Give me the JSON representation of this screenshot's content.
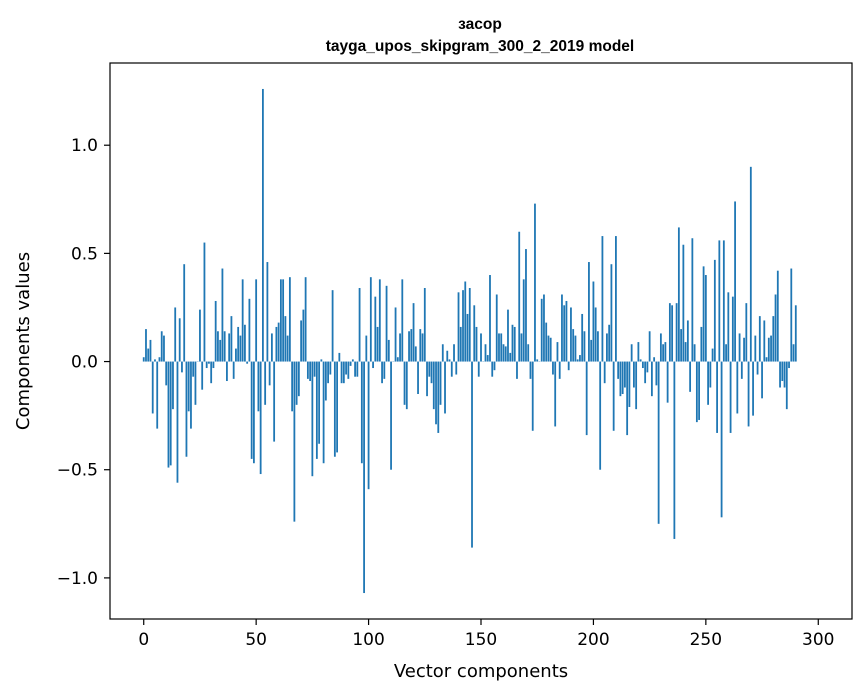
{
  "chart_data": {
    "type": "bar",
    "title": "засор",
    "subtitle": "tayga_upos_skipgram_300_2_2019 model",
    "xlabel": "Vector components",
    "ylabel": "Components values",
    "xlim": [
      -15,
      315
    ],
    "ylim": [
      -1.19,
      1.38
    ],
    "xticks": [
      0,
      50,
      100,
      150,
      200,
      250,
      300
    ],
    "xtick_labels": [
      "0",
      "50",
      "100",
      "150",
      "200",
      "250",
      "300"
    ],
    "yticks": [
      -1.0,
      -0.5,
      0.0,
      0.5,
      1.0
    ],
    "ytick_labels": [
      "−1.0",
      "−0.5",
      "0.0",
      "0.5",
      "1.0"
    ],
    "bar_color": "#1f77b4",
    "values": [
      0.02,
      0.15,
      0.06,
      0.1,
      -0.24,
      0.01,
      -0.31,
      0.02,
      0.14,
      0.12,
      -0.11,
      -0.49,
      -0.48,
      -0.22,
      0.25,
      -0.56,
      0.2,
      -0.05,
      0.45,
      -0.44,
      -0.23,
      -0.31,
      -0.07,
      -0.2,
      0.0,
      0.24,
      -0.13,
      0.55,
      -0.03,
      -0.01,
      -0.1,
      -0.03,
      0.28,
      0.14,
      0.1,
      0.43,
      0.14,
      -0.09,
      0.13,
      0.21,
      -0.08,
      0.06,
      0.16,
      0.12,
      0.38,
      0.17,
      -0.01,
      0.29,
      -0.45,
      -0.47,
      0.38,
      -0.23,
      -0.52,
      1.26,
      -0.2,
      0.46,
      -0.11,
      0.13,
      -0.37,
      0.16,
      0.18,
      0.38,
      0.38,
      0.21,
      0.12,
      0.39,
      -0.23,
      -0.74,
      -0.2,
      -0.16,
      0.19,
      0.24,
      0.39,
      -0.08,
      -0.09,
      -0.53,
      -0.07,
      -0.45,
      -0.38,
      0.01,
      -0.47,
      -0.18,
      -0.1,
      -0.06,
      0.33,
      -0.44,
      -0.42,
      0.04,
      -0.1,
      -0.1,
      -0.06,
      -0.08,
      -0.02,
      0.01,
      -0.07,
      -0.07,
      0.34,
      -0.47,
      -1.07,
      0.12,
      -0.59,
      0.39,
      -0.03,
      0.3,
      0.16,
      0.38,
      -0.1,
      -0.08,
      0.35,
      0.1,
      -0.5,
      0.0,
      0.25,
      0.02,
      0.13,
      0.38,
      -0.2,
      -0.22,
      0.14,
      0.15,
      0.27,
      0.07,
      -0.15,
      0.15,
      0.13,
      0.34,
      -0.16,
      -0.07,
      -0.1,
      -0.22,
      -0.29,
      -0.33,
      -0.2,
      0.08,
      -0.24,
      0.05,
      0.01,
      -0.07,
      0.08,
      -0.06,
      0.32,
      0.16,
      0.33,
      0.37,
      0.22,
      0.34,
      -0.86,
      0.26,
      0.16,
      -0.07,
      0.13,
      0.0,
      0.08,
      0.03,
      0.4,
      -0.07,
      -0.04,
      0.31,
      0.13,
      0.13,
      0.08,
      0.07,
      0.24,
      0.04,
      0.17,
      0.16,
      -0.08,
      0.6,
      0.13,
      0.38,
      0.52,
      0.08,
      -0.08,
      -0.32,
      0.73,
      0.01,
      0.0,
      0.29,
      0.31,
      0.18,
      0.12,
      0.11,
      -0.06,
      -0.3,
      0.09,
      -0.08,
      0.31,
      0.26,
      0.28,
      -0.04,
      0.25,
      0.15,
      0.12,
      0.01,
      0.03,
      0.22,
      0.14,
      -0.34,
      0.46,
      0.1,
      0.37,
      0.25,
      0.14,
      -0.5,
      0.58,
      -0.1,
      0.13,
      0.17,
      0.45,
      -0.32,
      0.58,
      -0.08,
      -0.16,
      -0.15,
      -0.12,
      -0.34,
      -0.21,
      0.08,
      -0.12,
      -0.22,
      0.09,
      0.01,
      -0.03,
      -0.1,
      -0.05,
      0.14,
      -0.16,
      0.02,
      -0.11,
      -0.75,
      0.13,
      0.08,
      0.09,
      -0.19,
      0.27,
      0.26,
      -0.82,
      0.27,
      0.62,
      0.15,
      0.54,
      0.09,
      0.19,
      -0.14,
      0.57,
      0.08,
      -0.28,
      -0.27,
      0.16,
      0.44,
      0.4,
      -0.2,
      -0.12,
      0.06,
      0.47,
      -0.33,
      0.56,
      -0.72,
      0.56,
      0.08,
      0.32,
      -0.33,
      0.3,
      0.74,
      -0.24,
      0.13,
      -0.08,
      0.11,
      0.27,
      -0.3,
      0.9,
      -0.25,
      0.12,
      -0.06,
      0.21,
      -0.17,
      0.19,
      0.02,
      0.11,
      0.12,
      0.21,
      0.31,
      0.42,
      -0.12,
      -0.09,
      -0.12,
      -0.22,
      -0.03,
      0.43,
      0.08,
      0.26
    ]
  }
}
